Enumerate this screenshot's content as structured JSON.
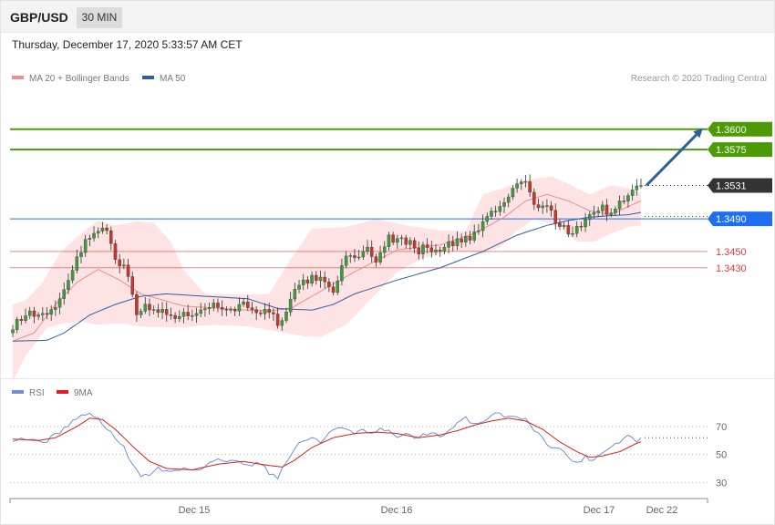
{
  "header": {
    "symbol": "GBP/USD",
    "timeframe": "30 MIN"
  },
  "datetime": "Thursday, December 17, 2020 5:33:57 AM CET",
  "copyright": "Research © 2020 Trading Central",
  "colors": {
    "bollinger": "#f28b8b",
    "band_fill": "#fde3e3",
    "ma50": "#2f5e9e",
    "target": "#4c9a06",
    "current": "#333333",
    "pivot": "#1e6ff0",
    "support": "#e23b3b",
    "rsi": "#6f8fd8",
    "rsi_ma": "#e01c1c",
    "bull": "#3d9a3d",
    "bear": "#c0392b",
    "arrow": "#2f5e9e"
  },
  "chart_data": [
    {
      "type": "candlestick",
      "name": "price",
      "legend": [
        "MA 20 + Bollinger Bands",
        "MA 50"
      ],
      "y_range": [
        1.33,
        1.364
      ],
      "x_ticks": [
        "Dec 15",
        "Dec 16",
        "Dec 17",
        "Dec 22"
      ],
      "levels": [
        {
          "label": "1.3600",
          "value": 1.36,
          "kind": "target"
        },
        {
          "label": "1.3575",
          "value": 1.3575,
          "kind": "target"
        },
        {
          "label": "1.3531",
          "value": 1.3531,
          "kind": "current"
        },
        {
          "label": "1.3490",
          "value": 1.349,
          "kind": "pivot"
        },
        {
          "label": "1.3450",
          "value": 1.345,
          "kind": "support"
        },
        {
          "label": "1.3430",
          "value": 1.343,
          "kind": "support"
        }
      ],
      "close_keys": [
        [
          0,
          1.336
        ],
        [
          4,
          1.3375
        ],
        [
          8,
          1.3368
        ],
        [
          12,
          1.3402
        ],
        [
          15,
          1.3445
        ],
        [
          18,
          1.347
        ],
        [
          22,
          1.348
        ],
        [
          24,
          1.3445
        ],
        [
          27,
          1.342
        ],
        [
          29,
          1.3378
        ],
        [
          31,
          1.338
        ],
        [
          35,
          1.3375
        ],
        [
          40,
          1.337
        ],
        [
          45,
          1.3385
        ],
        [
          50,
          1.338
        ],
        [
          55,
          1.3385
        ],
        [
          60,
          1.3372
        ],
        [
          63,
          1.336
        ],
        [
          66,
          1.34
        ],
        [
          70,
          1.342
        ],
        [
          75,
          1.3405
        ],
        [
          78,
          1.344
        ],
        [
          83,
          1.3452
        ],
        [
          85,
          1.3442
        ],
        [
          88,
          1.3465
        ],
        [
          92,
          1.3464
        ],
        [
          95,
          1.3452
        ],
        [
          100,
          1.3455
        ],
        [
          105,
          1.3462
        ],
        [
          108,
          1.347
        ],
        [
          111,
          1.3492
        ],
        [
          115,
          1.3508
        ],
        [
          118,
          1.3535
        ],
        [
          120,
          1.3532
        ],
        [
          122,
          1.351
        ],
        [
          125,
          1.3502
        ],
        [
          128,
          1.348
        ],
        [
          131,
          1.3475
        ],
        [
          134,
          1.349
        ],
        [
          137,
          1.3502
        ],
        [
          141,
          1.35
        ],
        [
          144,
          1.352
        ],
        [
          147,
          1.3531
        ]
      ],
      "ma20_keys": [
        [
          0,
          1.334
        ],
        [
          5,
          1.335
        ],
        [
          10,
          1.3385
        ],
        [
          15,
          1.3412
        ],
        [
          20,
          1.3428
        ],
        [
          25,
          1.3415
        ],
        [
          30,
          1.3398
        ],
        [
          40,
          1.3383
        ],
        [
          55,
          1.3378
        ],
        [
          60,
          1.3377
        ],
        [
          65,
          1.338
        ],
        [
          70,
          1.3395
        ],
        [
          80,
          1.3425
        ],
        [
          90,
          1.3452
        ],
        [
          100,
          1.3458
        ],
        [
          108,
          1.3472
        ],
        [
          115,
          1.3492
        ],
        [
          120,
          1.3512
        ],
        [
          125,
          1.352
        ],
        [
          130,
          1.3512
        ],
        [
          135,
          1.35
        ],
        [
          140,
          1.3495
        ],
        [
          144,
          1.3505
        ],
        [
          147,
          1.3512
        ]
      ],
      "upper_keys": [
        [
          0,
          1.3385
        ],
        [
          3,
          1.339
        ],
        [
          7,
          1.3412
        ],
        [
          11,
          1.3448
        ],
        [
          15,
          1.3468
        ],
        [
          20,
          1.3488
        ],
        [
          24,
          1.3482
        ],
        [
          29,
          1.3487
        ],
        [
          33,
          1.3485
        ],
        [
          37,
          1.3462
        ],
        [
          40,
          1.3427
        ],
        [
          45,
          1.3398
        ],
        [
          55,
          1.3397
        ],
        [
          60,
          1.3398
        ],
        [
          65,
          1.344
        ],
        [
          70,
          1.3478
        ],
        [
          78,
          1.348
        ],
        [
          85,
          1.349
        ],
        [
          92,
          1.3482
        ],
        [
          100,
          1.3476
        ],
        [
          106,
          1.3475
        ],
        [
          110,
          1.352
        ],
        [
          115,
          1.3528
        ],
        [
          120,
          1.3538
        ],
        [
          126,
          1.3542
        ],
        [
          130,
          1.3533
        ],
        [
          135,
          1.352
        ],
        [
          140,
          1.3531
        ],
        [
          144,
          1.3528
        ],
        [
          147,
          1.3522
        ]
      ],
      "lower_keys": [
        [
          0,
          1.329
        ],
        [
          3,
          1.3322
        ],
        [
          8,
          1.3356
        ],
        [
          12,
          1.3362
        ],
        [
          16,
          1.3364
        ],
        [
          20,
          1.336
        ],
        [
          25,
          1.3362
        ],
        [
          30,
          1.3358
        ],
        [
          35,
          1.3357
        ],
        [
          40,
          1.3357
        ],
        [
          47,
          1.336
        ],
        [
          55,
          1.3358
        ],
        [
          62,
          1.3352
        ],
        [
          68,
          1.3346
        ],
        [
          72,
          1.3345
        ],
        [
          78,
          1.336
        ],
        [
          85,
          1.3398
        ],
        [
          90,
          1.3425
        ],
        [
          96,
          1.3442
        ],
        [
          102,
          1.345
        ],
        [
          107,
          1.345
        ],
        [
          110,
          1.3448
        ],
        [
          114,
          1.3455
        ],
        [
          118,
          1.3475
        ],
        [
          122,
          1.349
        ],
        [
          128,
          1.348
        ],
        [
          132,
          1.3462
        ],
        [
          136,
          1.3462
        ],
        [
          140,
          1.3472
        ],
        [
          144,
          1.348
        ],
        [
          147,
          1.3482
        ]
      ],
      "ma50_keys": [
        [
          0,
          1.334
        ],
        [
          8,
          1.3341
        ],
        [
          12,
          1.335
        ],
        [
          18,
          1.3372
        ],
        [
          24,
          1.3385
        ],
        [
          30,
          1.3395
        ],
        [
          36,
          1.3398
        ],
        [
          45,
          1.3395
        ],
        [
          55,
          1.3392
        ],
        [
          62,
          1.338
        ],
        [
          70,
          1.3378
        ],
        [
          75,
          1.3385
        ],
        [
          80,
          1.3398
        ],
        [
          90,
          1.3415
        ],
        [
          100,
          1.343
        ],
        [
          110,
          1.345
        ],
        [
          118,
          1.347
        ],
        [
          125,
          1.3482
        ],
        [
          130,
          1.3488
        ],
        [
          135,
          1.3492
        ],
        [
          140,
          1.3494
        ],
        [
          144,
          1.3495
        ],
        [
          147,
          1.3498
        ]
      ]
    },
    {
      "type": "line",
      "name": "rsi",
      "legend": [
        "RSI",
        "9MA"
      ],
      "y_range": [
        21.7,
        85.0
      ],
      "y_ticks": [
        "70",
        "50",
        "30"
      ],
      "rsi_keys": [
        [
          0,
          61
        ],
        [
          2,
          62
        ],
        [
          5,
          60
        ],
        [
          8,
          60
        ],
        [
          11,
          66
        ],
        [
          14,
          74
        ],
        [
          17,
          79
        ],
        [
          19,
          78
        ],
        [
          21,
          72
        ],
        [
          24,
          62
        ],
        [
          26,
          55
        ],
        [
          28,
          42
        ],
        [
          30,
          35
        ],
        [
          32,
          36
        ],
        [
          34,
          40
        ],
        [
          36,
          38
        ],
        [
          38,
          38
        ],
        [
          40,
          40
        ],
        [
          42,
          39
        ],
        [
          44,
          40
        ],
        [
          46,
          44
        ],
        [
          48,
          47
        ],
        [
          50,
          44
        ],
        [
          52,
          46
        ],
        [
          54,
          44
        ],
        [
          56,
          43
        ],
        [
          58,
          44
        ],
        [
          60,
          37
        ],
        [
          62,
          34
        ],
        [
          64,
          44
        ],
        [
          66,
          55
        ],
        [
          68,
          60
        ],
        [
          70,
          62
        ],
        [
          72,
          58
        ],
        [
          74,
          66
        ],
        [
          76,
          70
        ],
        [
          78,
          68
        ],
        [
          80,
          64
        ],
        [
          82,
          68
        ],
        [
          84,
          64
        ],
        [
          86,
          68
        ],
        [
          88,
          66
        ],
        [
          90,
          63
        ],
        [
          92,
          64
        ],
        [
          94,
          62
        ],
        [
          96,
          64
        ],
        [
          98,
          66
        ],
        [
          100,
          62
        ],
        [
          102,
          66
        ],
        [
          104,
          72
        ],
        [
          106,
          76
        ],
        [
          108,
          72
        ],
        [
          110,
          73
        ],
        [
          112,
          79
        ],
        [
          114,
          80
        ],
        [
          116,
          76
        ],
        [
          118,
          78
        ],
        [
          120,
          75
        ],
        [
          122,
          68
        ],
        [
          124,
          61
        ],
        [
          126,
          56
        ],
        [
          128,
          54
        ],
        [
          130,
          48
        ],
        [
          132,
          44
        ],
        [
          134,
          48
        ],
        [
          136,
          46
        ],
        [
          138,
          52
        ],
        [
          140,
          56
        ],
        [
          142,
          59
        ],
        [
          144,
          64
        ],
        [
          146,
          59
        ],
        [
          147,
          62
        ]
      ],
      "ma_keys": [
        [
          0,
          61
        ],
        [
          6,
          60
        ],
        [
          10,
          62
        ],
        [
          15,
          70
        ],
        [
          18,
          76
        ],
        [
          21,
          75
        ],
        [
          24,
          68
        ],
        [
          28,
          56
        ],
        [
          32,
          45
        ],
        [
          36,
          40
        ],
        [
          42,
          39
        ],
        [
          48,
          43
        ],
        [
          54,
          45
        ],
        [
          58,
          43
        ],
        [
          63,
          41
        ],
        [
          66,
          46
        ],
        [
          70,
          55
        ],
        [
          75,
          62
        ],
        [
          80,
          65
        ],
        [
          85,
          66
        ],
        [
          90,
          65
        ],
        [
          95,
          62
        ],
        [
          100,
          64
        ],
        [
          104,
          67
        ],
        [
          108,
          71
        ],
        [
          112,
          74
        ],
        [
          116,
          76
        ],
        [
          120,
          74
        ],
        [
          124,
          68
        ],
        [
          128,
          59
        ],
        [
          132,
          52
        ],
        [
          135,
          48
        ],
        [
          138,
          49
        ],
        [
          142,
          52
        ],
        [
          146,
          58
        ],
        [
          147,
          59
        ]
      ]
    }
  ]
}
